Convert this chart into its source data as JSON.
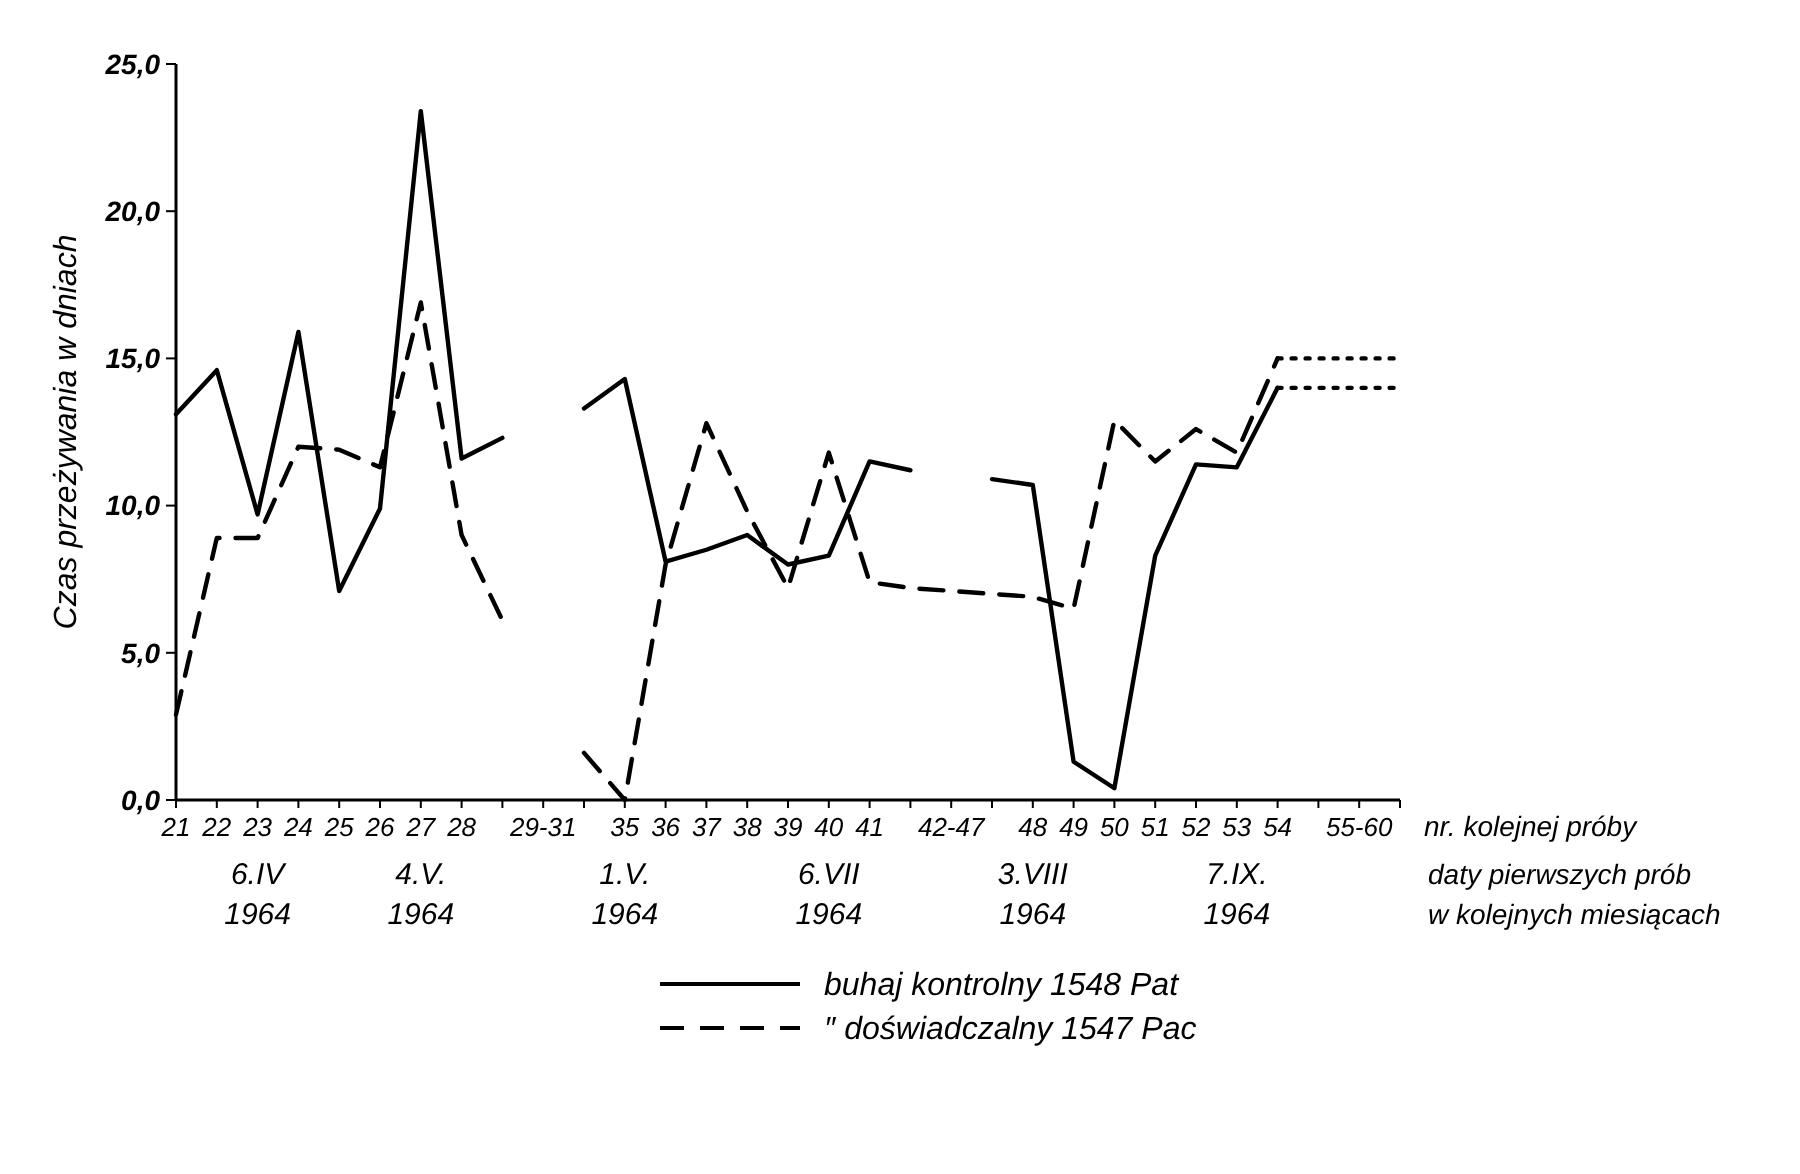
{
  "chart_data": {
    "type": "line",
    "xlabel": "nr. kolejnej próby",
    "ylabel": "Czas przeżywania w dniach",
    "categories": [
      "21",
      "22",
      "23",
      "24",
      "25",
      "26",
      "27",
      "28",
      null,
      "29-31",
      null,
      "35",
      "36",
      "37",
      "38",
      "39",
      "40",
      "41",
      null,
      "42-47",
      null,
      "48",
      "49",
      "50",
      "51",
      "52",
      "53",
      "54",
      null,
      "55-60",
      null
    ],
    "series": [
      {
        "name": "buhaj kontrolny 1548 Pat",
        "color": "#000000",
        "line_style": "solid",
        "values": [
          13.1,
          14.6,
          9.7,
          15.9,
          7.1,
          9.9,
          23.4,
          11.6,
          12.3,
          null,
          13.3,
          14.3,
          8.1,
          8.5,
          9.0,
          8.0,
          8.3,
          11.5,
          11.2,
          null,
          10.9,
          10.7,
          1.3,
          0.4,
          8.3,
          11.4,
          11.3,
          14.0,
          null,
          null,
          null
        ]
      },
      {
        "name": "″ doświadczalny 1547 Pac",
        "color": "#000000",
        "line_style": "dashed",
        "values": [
          2.9,
          8.9,
          8.9,
          12.0,
          11.9,
          11.3,
          16.9,
          9.0,
          6.1,
          null,
          1.6,
          0.0,
          8.0,
          12.8,
          9.8,
          7.2,
          11.8,
          7.4,
          7.2,
          7.1,
          7.0,
          6.9,
          6.5,
          12.9,
          11.5,
          12.6,
          11.8,
          15.0,
          null,
          null,
          null
        ]
      },
      {
        "color": "#000000",
        "line_style": "dotted",
        "values": [
          null,
          null,
          null,
          null,
          null,
          null,
          null,
          null,
          null,
          null,
          null,
          null,
          null,
          null,
          null,
          null,
          null,
          null,
          null,
          null,
          null,
          null,
          null,
          null,
          null,
          null,
          null,
          14.0,
          14.0,
          14.0,
          14.0
        ]
      },
      {
        "color": "#000000",
        "line_style": "dotted",
        "values": [
          null,
          null,
          null,
          null,
          null,
          null,
          null,
          null,
          null,
          null,
          null,
          null,
          null,
          null,
          null,
          null,
          null,
          null,
          null,
          null,
          null,
          null,
          null,
          null,
          null,
          null,
          null,
          15.0,
          15.0,
          15.0,
          15.0
        ]
      }
    ],
    "ylim": [
      0,
      25
    ],
    "yticks": [
      {
        "value": 0,
        "label": "0,0"
      },
      {
        "value": 5,
        "label": "5,0"
      },
      {
        "value": 10,
        "label": "10,0"
      },
      {
        "value": 15,
        "label": "15,0"
      },
      {
        "value": 20,
        "label": "20,0"
      },
      {
        "value": 25,
        "label": "25,0"
      }
    ],
    "grid": false,
    "marker": "none",
    "legend": "bottom",
    "annotations": [
      "6.IV\n1964",
      "4.V.\n1964",
      "1.V.\n1964",
      "6.VII\n1964",
      "3.VIII\n1964",
      "7.IX.\n1964",
      "daty pierwszych prób\nw kolejnych miesiącach"
    ]
  }
}
